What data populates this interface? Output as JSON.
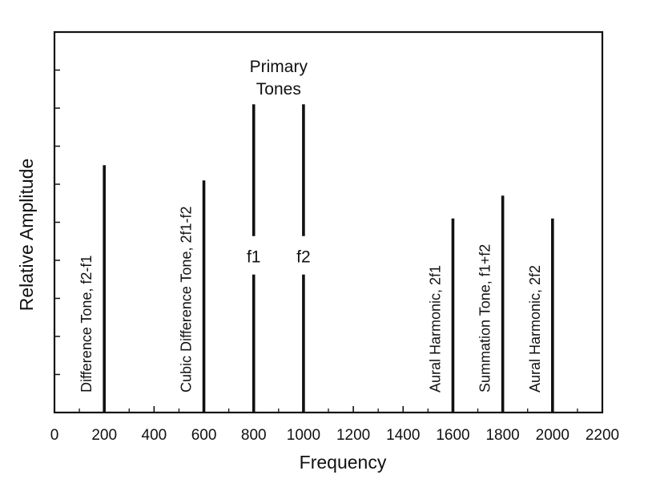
{
  "chart_data": {
    "type": "bar",
    "title": "",
    "xlabel": "Frequency",
    "ylabel": "Relative Amplitude",
    "xlim": [
      0,
      2200
    ],
    "ylim": [
      0,
      10
    ],
    "grid": false,
    "x_ticks": [
      0,
      200,
      400,
      600,
      800,
      1000,
      1200,
      1400,
      1600,
      1800,
      2000,
      2200
    ],
    "y_ticks": [
      0,
      1,
      2,
      3,
      4,
      5,
      6,
      7,
      8,
      9,
      10
    ],
    "group_label": "Primary\nTones",
    "components": [
      {
        "x": 200,
        "y": 6.5,
        "label": "Difference Tone, f2-f1",
        "inline_label": ""
      },
      {
        "x": 600,
        "y": 6.1,
        "label": "Cubic Difference Tone, 2f1-f2",
        "inline_label": ""
      },
      {
        "x": 800,
        "y": 8.1,
        "label": "",
        "inline_label": "f1"
      },
      {
        "x": 1000,
        "y": 8.1,
        "label": "",
        "inline_label": "f2"
      },
      {
        "x": 1600,
        "y": 5.1,
        "label": "Aural Harmonic, 2f1",
        "inline_label": ""
      },
      {
        "x": 1800,
        "y": 5.7,
        "label": "Summation Tone, f1+f2",
        "inline_label": ""
      },
      {
        "x": 2000,
        "y": 5.1,
        "label": "Aural Harmonic, 2f2",
        "inline_label": ""
      }
    ]
  }
}
